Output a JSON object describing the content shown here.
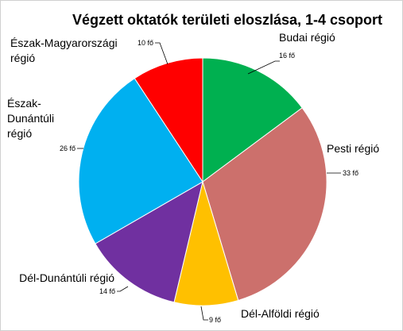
{
  "chart_data": {
    "type": "pie",
    "title": "Végzett oktatók területi eloszlása, 1-4 csoport",
    "categories": [
      "Budai régió",
      "Pesti régió",
      "Dél-Alföldi régió",
      "Dél-Dunántúli régió",
      "Észak-Dunántúli régió",
      "Észak-Magyarországi régió"
    ],
    "values": [
      16,
      33,
      9,
      14,
      26,
      10
    ],
    "value_labels": [
      "16 fő",
      "33 fő",
      "9 fő",
      "14 fő",
      "26 fő",
      "10 fő"
    ],
    "colors": [
      "#00b050",
      "#cc706c",
      "#ffc000",
      "#7030a0",
      "#00b0f0",
      "#ff0000"
    ],
    "legend": "none",
    "start_angle_deg": 0,
    "direction": "clockwise"
  }
}
